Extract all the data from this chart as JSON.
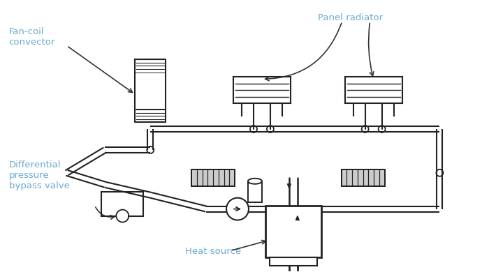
{
  "bg_color": "#ffffff",
  "line_color": "#222222",
  "text_color": "#6aabcf",
  "arrow_color": "#222222",
  "lw_pipe": 1.6,
  "lw_comp": 1.4,
  "labels": {
    "fan_coil": "Fan-coil\nconvector",
    "panel_radiator": "Panel radiator",
    "diff_pressure": "Differential\npressure\nbypass valve",
    "heat_source": "Heat source"
  },
  "figsize": [
    7.0,
    3.9
  ],
  "dpi": 100
}
